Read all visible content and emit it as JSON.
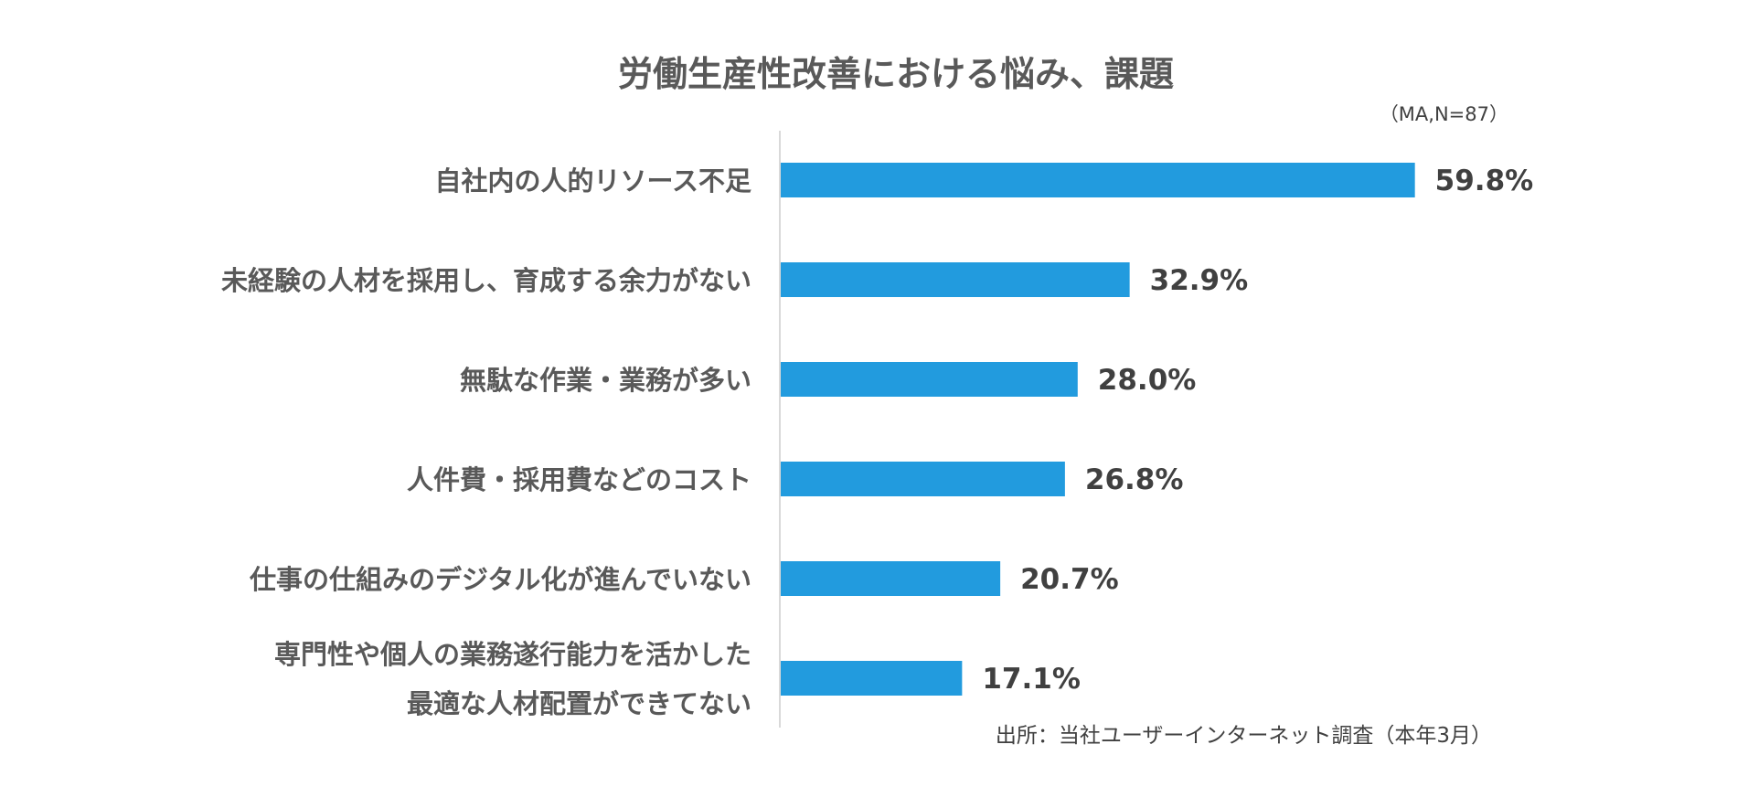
{
  "chart_data": {
    "type": "bar",
    "orientation": "horizontal",
    "title": "労働生産性改善における悩み、課題",
    "note": "（MA,N=87）",
    "source": "出所：当社ユーザーインターネット調査（本年3月）",
    "categories": [
      [
        "自社内の人的リソース不足"
      ],
      [
        "未経験の人材を採用し、育成する余力がない"
      ],
      [
        "無駄な作業・業務が多い"
      ],
      [
        "人件費・採用費などのコスト"
      ],
      [
        "仕事の仕組みのデジタル化が進んでいない"
      ],
      [
        "専門性や個人の業務遂行能力を活かした",
        "最適な人材配置ができてない"
      ]
    ],
    "values": [
      59.8,
      32.9,
      28.0,
      26.8,
      20.7,
      17.1
    ],
    "value_labels": [
      "59.8%",
      "32.9%",
      "28.0%",
      "26.8%",
      "20.7%",
      "17.1%"
    ],
    "bar_color": "#229BDE",
    "axis_color": "#D9D9D9",
    "grid": false,
    "legend": "none"
  }
}
